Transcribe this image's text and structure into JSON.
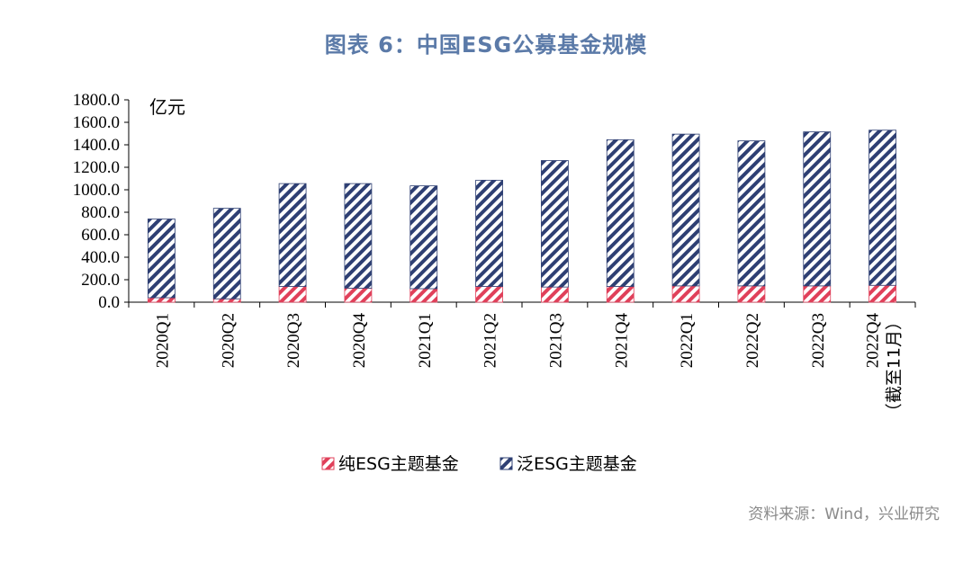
{
  "title": "图表 6：中国ESG公募基金规模",
  "source": "资料来源：Wind，兴业研究",
  "chart_data": {
    "type": "bar",
    "stacked": true,
    "title": "图表 6：中国ESG公募基金规模",
    "unit_label": "亿元",
    "categories": [
      "2020Q1",
      "2020Q2",
      "2020Q3",
      "2020Q4",
      "2021Q1",
      "2021Q2",
      "2021Q3",
      "2021Q4",
      "2022Q1",
      "2022Q2",
      "2022Q3",
      "2022Q4"
    ],
    "category_sublabels": [
      "",
      "",
      "",
      "",
      "",
      "",
      "",
      "",
      "",
      "",
      "",
      "（截至11月）"
    ],
    "y_ticks": [
      "0.0",
      "200.0",
      "400.0",
      "600.0",
      "800.0",
      "1000.0",
      "1200.0",
      "1400.0",
      "1600.0",
      "1800.0"
    ],
    "ylim": [
      0,
      1800
    ],
    "grid": false,
    "legend_position": "bottom",
    "series": [
      {
        "name": "纯ESG主题基金",
        "color": "#e0405a",
        "pattern": "diagonal-stripes",
        "values": [
          40,
          30,
          140,
          125,
          120,
          140,
          135,
          140,
          145,
          145,
          145,
          150
        ]
      },
      {
        "name": "泛ESG主题基金",
        "color": "#2e3f73",
        "pattern": "diagonal-stripes",
        "values": [
          700,
          805,
          915,
          930,
          915,
          945,
          1125,
          1305,
          1350,
          1290,
          1370,
          1380
        ]
      }
    ]
  }
}
